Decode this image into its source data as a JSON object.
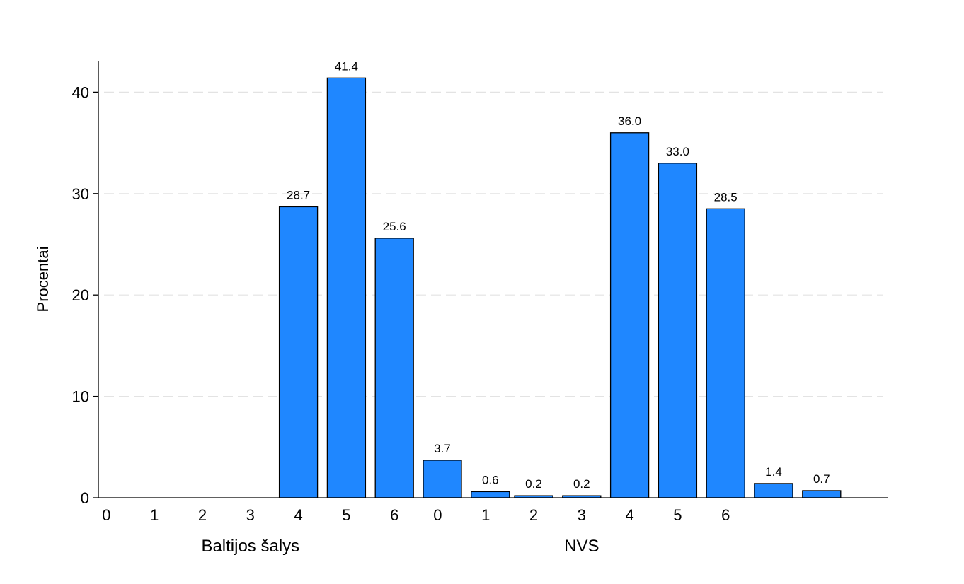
{
  "chart_data": {
    "type": "bar",
    "ylabel": "Procentai",
    "ylim": [
      0,
      43
    ],
    "yticks": [
      0,
      10,
      20,
      30,
      40
    ],
    "grid": true,
    "bar_color": "#1f87ff",
    "groups": [
      {
        "name": "Baltijos šalys",
        "categories": [
          "0",
          "1",
          "2",
          "3",
          "4",
          "5",
          "6"
        ],
        "values": [
          0,
          0,
          28.7,
          41.4,
          25.6,
          3.7,
          0.6
        ],
        "labels": [
          "",
          "",
          "28.7",
          "41.4",
          "25.6",
          "3.7",
          "0.6"
        ]
      },
      {
        "name": "NVS",
        "categories": [
          "0",
          "1",
          "2",
          "3",
          "4",
          "5",
          "6"
        ],
        "values": [
          0.2,
          0.2,
          36.0,
          33.0,
          28.5,
          1.4,
          0.7
        ],
        "labels": [
          "0.2",
          "0.2",
          "36.0",
          "33.0",
          "28.5",
          "1.4",
          "0.7"
        ]
      }
    ]
  }
}
